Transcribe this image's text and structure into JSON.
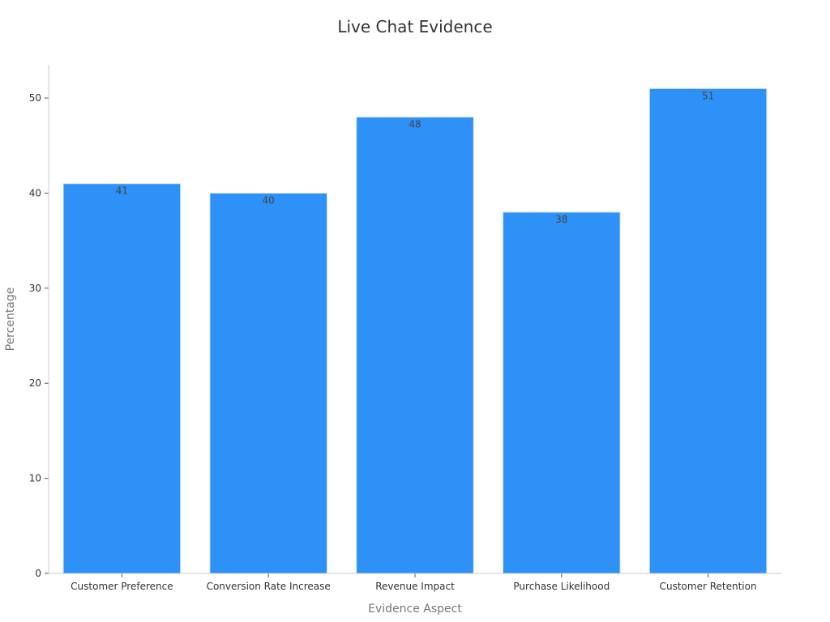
{
  "chart_data": {
    "type": "bar",
    "title": "Live Chat Evidence",
    "xlabel": "Evidence Aspect",
    "ylabel": "Percentage",
    "categories": [
      "Customer Preference",
      "Conversion Rate Increase",
      "Revenue Impact",
      "Purchase Likelihood",
      "Customer Retention"
    ],
    "values": [
      41,
      40,
      48,
      38,
      51
    ],
    "ylim": [
      0,
      53.5
    ],
    "yticks": [
      0,
      10,
      20,
      30,
      40,
      50
    ],
    "grid": false,
    "legend": false,
    "bar_color": "#2e91f7"
  }
}
